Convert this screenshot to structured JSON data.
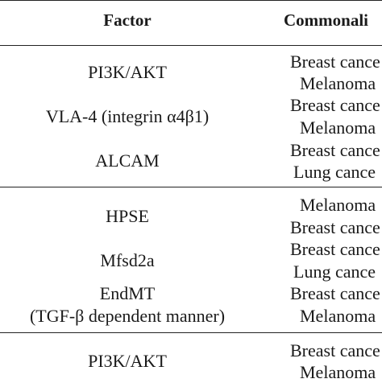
{
  "header": {
    "factor": "Factor",
    "commonality": "Commonali"
  },
  "sections": [
    {
      "rows": [
        {
          "factor": "PI3K/AKT",
          "commonality": [
            "Breast cance",
            "Melanoma"
          ]
        },
        {
          "factor": "VLA-4 (integrin α4β1)",
          "commonality": [
            "Breast cance",
            "Melanoma"
          ]
        },
        {
          "factor": "ALCAM",
          "commonality": [
            "Breast cance",
            "Lung cance"
          ]
        }
      ]
    },
    {
      "rows": [
        {
          "factor": "HPSE",
          "commonality": [
            "Melanoma",
            "Breast cance"
          ]
        },
        {
          "factor": "Mfsd2a",
          "commonality": [
            "Breast cance",
            "Lung cance"
          ]
        },
        {
          "factor": "EndMT",
          "factor_line2": "(TGF-β dependent manner)",
          "commonality": [
            "Breast cance",
            "Melanoma"
          ]
        }
      ]
    },
    {
      "rows": [
        {
          "factor": "PI3K/AKT",
          "commonality": [
            "Breast cance",
            "Melanoma"
          ]
        }
      ]
    }
  ]
}
